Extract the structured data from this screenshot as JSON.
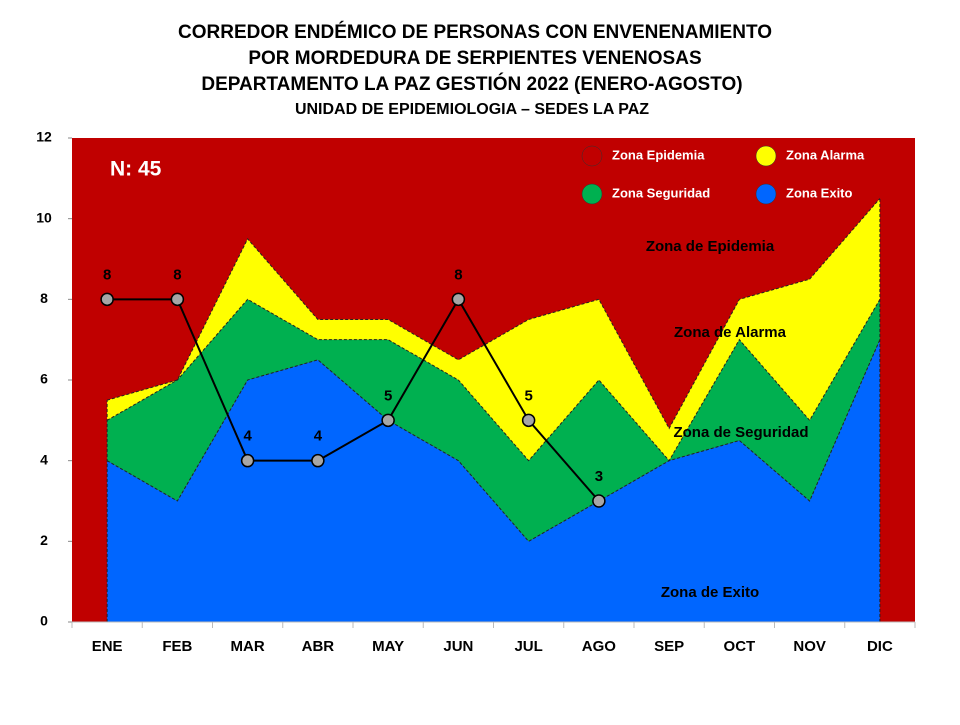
{
  "chart_data": {
    "type": "endemic-corridor",
    "title": [
      "CORREDOR ENDÉMICO DE PERSONAS CON ENVENENAMIENTO",
      "POR MORDEDURA DE SERPIENTES VENENOSAS",
      "DEPARTAMENTO  LA PAZ GESTIÓN 2022 (ENERO-AGOSTO)"
    ],
    "subtitle": "UNIDAD DE EPIDEMIOLOGIA – SEDES LA PAZ",
    "note": "N: 45",
    "categories": [
      "ENE",
      "FEB",
      "MAR",
      "ABR",
      "MAY",
      "JUN",
      "JUL",
      "AGO",
      "SEP",
      "OCT",
      "NOV",
      "DIC"
    ],
    "ylim": [
      0,
      12
    ],
    "yticks": [
      0,
      2,
      4,
      6,
      8,
      10,
      12
    ],
    "epidemic_zone": {
      "name": "Zona Epidemia",
      "color": "#c00000"
    },
    "series": [
      {
        "name": "Zona Exito",
        "color": "#0066ff",
        "values": [
          4,
          3,
          6,
          6.5,
          5,
          4,
          2,
          3,
          4,
          4.5,
          3,
          7
        ]
      },
      {
        "name": "Zona Seguridad",
        "color": "#00b050",
        "values": [
          5,
          6,
          8,
          7,
          7,
          6,
          4,
          6,
          4,
          7,
          5,
          8
        ]
      },
      {
        "name": "Zona Alarma",
        "color": "#ffff00",
        "values": [
          5.5,
          6,
          9.5,
          7.5,
          7.5,
          6.5,
          7.5,
          8,
          4.8,
          8,
          8.5,
          10.5
        ]
      }
    ],
    "cases": {
      "values": [
        8,
        8,
        4,
        4,
        5,
        8,
        5,
        3,
        null,
        null,
        null,
        null
      ],
      "color": "#000000"
    },
    "annotations": [
      "Zona de  Epidemia",
      "Zona de Alarma",
      "Zona de Seguridad",
      "Zona de Exito"
    ]
  }
}
